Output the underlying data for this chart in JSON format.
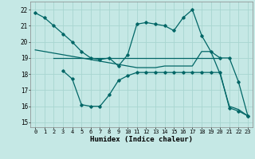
{
  "bg_color": "#c5e8e5",
  "grid_color": "#a8d5d0",
  "line_color": "#006666",
  "line_width": 0.9,
  "marker": "D",
  "marker_size": 1.8,
  "xlabel": "Humidex (Indice chaleur)",
  "ylim": [
    14.7,
    22.5
  ],
  "xlim": [
    -0.5,
    23.5
  ],
  "yticks": [
    15,
    16,
    17,
    18,
    19,
    20,
    21,
    22
  ],
  "xticks": [
    0,
    1,
    2,
    3,
    4,
    5,
    6,
    7,
    8,
    9,
    10,
    11,
    12,
    13,
    14,
    15,
    16,
    17,
    18,
    19,
    20,
    21,
    22,
    23
  ],
  "series1_x": [
    0,
    1,
    2,
    3,
    4,
    5,
    6,
    7,
    8,
    9,
    10,
    11,
    12,
    13,
    14,
    15,
    16,
    17,
    18,
    19,
    20,
    21,
    22,
    23
  ],
  "series1_y": [
    21.8,
    21.5,
    21.0,
    20.5,
    20.0,
    19.4,
    19.0,
    18.9,
    19.0,
    18.5,
    19.2,
    21.1,
    21.2,
    21.1,
    21.0,
    20.7,
    21.5,
    22.0,
    20.4,
    19.4,
    19.0,
    19.0,
    17.5,
    15.4
  ],
  "series2_x": [
    2,
    3,
    4,
    5,
    6,
    7,
    8,
    9,
    10,
    11,
    12,
    13,
    14,
    15,
    16,
    17,
    18,
    19,
    20
  ],
  "series2_y": [
    19.0,
    19.0,
    19.0,
    19.0,
    19.0,
    19.0,
    19.0,
    19.0,
    19.0,
    19.0,
    19.0,
    19.0,
    19.0,
    19.0,
    19.0,
    19.0,
    19.0,
    19.0,
    19.0
  ],
  "series3_x": [
    3,
    4,
    5,
    6,
    7,
    8,
    9,
    10,
    11,
    12,
    13,
    14,
    15,
    16,
    17,
    18,
    19,
    20,
    21,
    22,
    23
  ],
  "series3_y": [
    18.2,
    17.7,
    16.1,
    16.0,
    16.0,
    16.7,
    17.6,
    17.9,
    18.1,
    18.1,
    18.1,
    18.1,
    18.1,
    18.1,
    18.1,
    18.1,
    18.1,
    18.1,
    15.9,
    15.7,
    15.4
  ],
  "series4_x": [
    0,
    1,
    2,
    3,
    4,
    5,
    6,
    7,
    8,
    9,
    10,
    11,
    12,
    13,
    14,
    15,
    16,
    17,
    18,
    19,
    20,
    21,
    22,
    23
  ],
  "series4_y": [
    19.5,
    19.4,
    19.3,
    19.2,
    19.1,
    19.0,
    18.9,
    18.8,
    18.7,
    18.6,
    18.5,
    18.4,
    18.4,
    18.4,
    18.5,
    18.5,
    18.5,
    18.5,
    19.4,
    19.4,
    18.0,
    16.0,
    15.8,
    15.4
  ]
}
